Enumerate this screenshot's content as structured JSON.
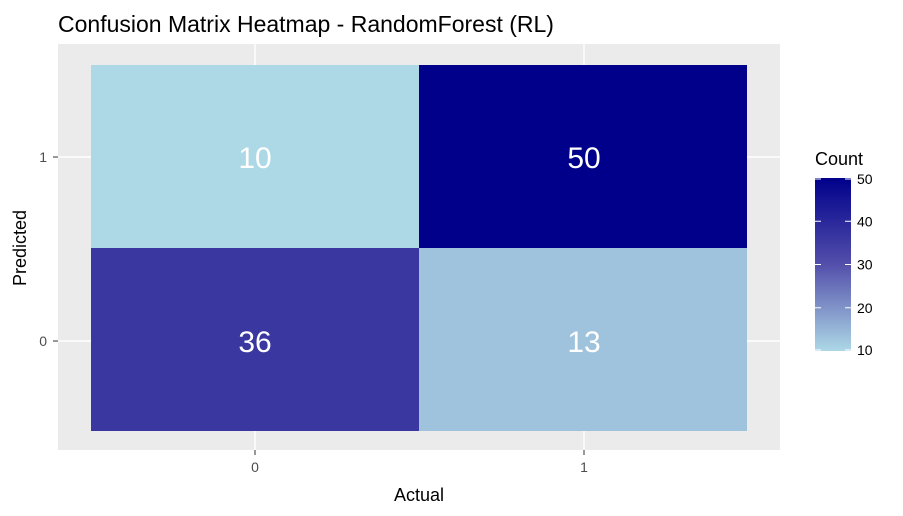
{
  "chart_data": {
    "type": "heatmap",
    "title": "Confusion Matrix Heatmap - RandomForest (RL)",
    "xlabel": "Actual",
    "ylabel": "Predicted",
    "x_categories": [
      "0",
      "1"
    ],
    "y_categories": [
      "0",
      "1"
    ],
    "cells": [
      {
        "actual": "0",
        "predicted": "1",
        "count": 10
      },
      {
        "actual": "1",
        "predicted": "1",
        "count": 50
      },
      {
        "actual": "0",
        "predicted": "0",
        "count": 36
      },
      {
        "actual": "1",
        "predicted": "0",
        "count": 13
      }
    ],
    "legend": {
      "title": "Count",
      "ticks": [
        10,
        20,
        30,
        40,
        50
      ],
      "range": [
        10,
        50
      ],
      "low_color": "#add8e6",
      "high_color": "#00008b",
      "placement": "right"
    },
    "panel_background": "#ebebeb",
    "grid": true
  }
}
